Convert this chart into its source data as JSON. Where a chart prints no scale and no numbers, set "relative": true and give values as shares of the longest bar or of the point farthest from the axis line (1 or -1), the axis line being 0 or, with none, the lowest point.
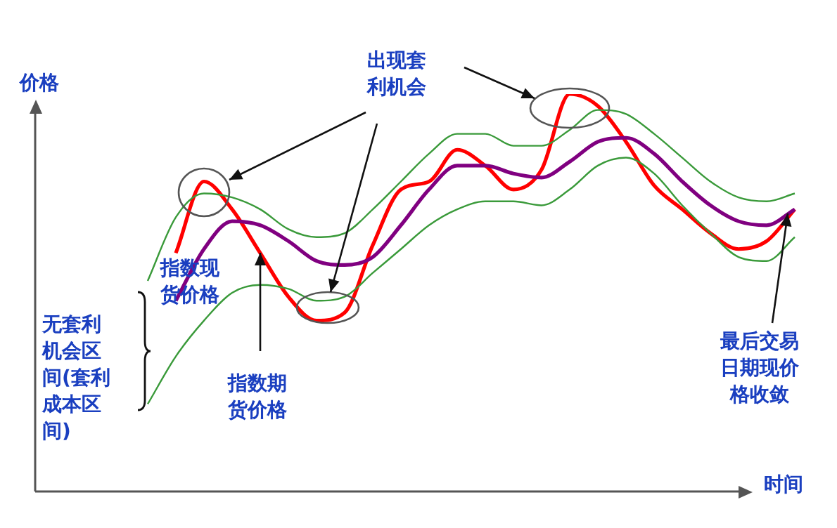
{
  "chart_data": {
    "type": "line",
    "relative": true,
    "xlabel": "时间",
    "ylabel": "价格",
    "grid": false,
    "legend": false,
    "marker": "none",
    "categories": [
      null,
      null,
      null,
      null,
      null,
      null,
      null,
      null,
      null,
      null,
      null,
      null,
      null,
      null,
      null,
      null,
      null,
      null,
      null,
      null,
      null,
      null,
      null,
      null,
      null,
      null,
      null,
      null
    ],
    "series": [
      {
        "color": "#3a9a3a",
        "values": [
          null,
          null,
          null,
          null,
          0.53,
          0.69,
          0.75,
          0.74,
          0.71,
          0.66,
          0.64,
          0.65,
          0.71,
          0.78,
          0.85,
          0.9,
          0.9,
          0.87,
          0.87,
          0.91,
          0.96,
          0.95,
          0.9,
          0.84,
          0.78,
          0.74,
          0.73,
          0.75
        ]
      },
      {
        "color": "#3a9a3a",
        "values": [
          null,
          null,
          null,
          null,
          0.22,
          0.34,
          0.43,
          0.5,
          0.52,
          0.51,
          0.48,
          0.49,
          0.55,
          0.61,
          0.67,
          0.71,
          0.73,
          0.73,
          0.72,
          0.76,
          0.82,
          0.84,
          0.8,
          0.72,
          0.65,
          0.59,
          0.58,
          0.64
        ]
      },
      {
        "name": "指数现货价格",
        "color": "#800080",
        "values": [
          null,
          null,
          null,
          null,
          null,
          0.48,
          0.61,
          0.68,
          0.67,
          0.63,
          0.58,
          0.57,
          0.59,
          0.67,
          0.76,
          0.82,
          0.82,
          0.8,
          0.79,
          0.83,
          0.88,
          0.89,
          0.85,
          0.78,
          0.72,
          0.68,
          0.67,
          0.71
        ]
      },
      {
        "name": "指数期货价格",
        "color": "#ff0000",
        "values": [
          null,
          null,
          null,
          null,
          null,
          0.6,
          0.78,
          0.71,
          0.6,
          0.49,
          0.43,
          0.45,
          0.62,
          0.76,
          0.78,
          0.86,
          0.82,
          0.76,
          0.81,
          1,
          0.97,
          0.88,
          0.77,
          0.71,
          0.65,
          0.61,
          0.63,
          0.71
        ]
      }
    ],
    "annotations": [
      "出现套利机会",
      "无套利机会区间(套利成本区间)",
      "最后交易日期现价格收敛"
    ]
  }
}
